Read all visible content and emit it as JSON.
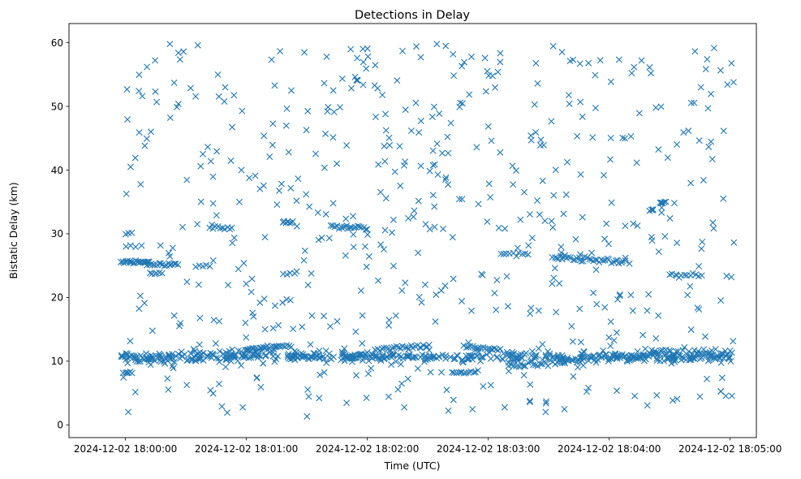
{
  "chart_data": {
    "type": "scatter",
    "title": "Detections in Delay",
    "xlabel": "Time (UTC)",
    "ylabel": "Bistatic Delay (km)",
    "marker": "x",
    "color": "#1f77b4",
    "grid": false,
    "xlim_seconds_after_18_00": [
      -28,
      313
    ],
    "ylim": [
      -2,
      63
    ],
    "x_ticks": [
      {
        "value": 0,
        "label": "2024-12-02 18:00:00"
      },
      {
        "value": 60,
        "label": "2024-12-02 18:01:00"
      },
      {
        "value": 120,
        "label": "2024-12-02 18:02:00"
      },
      {
        "value": 180,
        "label": "2024-12-02 18:03:00"
      },
      {
        "value": 240,
        "label": "2024-12-02 18:04:00"
      },
      {
        "value": 300,
        "label": "2024-12-02 18:05:00"
      }
    ],
    "y_ticks": [
      0,
      10,
      20,
      30,
      40,
      50,
      60
    ],
    "point_generation": {
      "description": "Approximately 1500 detections read from the scatter; dense tracks listed with their time span in seconds after 18:00:00 and delay in km, remaining points scattered uniformly over 0-60 km.",
      "seed": 20241202,
      "background_count": 560,
      "time_start_s": -2,
      "time_end_s": 302,
      "delay_min_km": 1,
      "delay_max_km": 60,
      "baseline_track": {
        "t0": -2,
        "t1": 302,
        "delay_km": 10.7,
        "jitter_km": 0.35,
        "count": 420
      },
      "tracks": [
        {
          "t0": -2,
          "t1": 12,
          "y0": 25.6,
          "y1": 25.6,
          "jitter": 0.15,
          "count": 22
        },
        {
          "t0": 10,
          "t1": 26,
          "y0": 25.2,
          "y1": 25.2,
          "jitter": 0.15,
          "count": 18
        },
        {
          "t0": -1,
          "t1": 3,
          "y0": 8.2,
          "y1": 8.2,
          "jitter": 0.1,
          "count": 6
        },
        {
          "t0": 0,
          "t1": 5,
          "y0": 28.0,
          "y1": 28.0,
          "jitter": 0.1,
          "count": 3
        },
        {
          "t0": 0,
          "t1": 3,
          "y0": 30.2,
          "y1": 30.2,
          "jitter": 0.2,
          "count": 3
        },
        {
          "t0": 4,
          "t1": 24,
          "y0": 10.7,
          "y1": 9.5,
          "jitter": 0.5,
          "count": 24
        },
        {
          "t0": 12,
          "t1": 18,
          "y0": 23.8,
          "y1": 23.8,
          "jitter": 0.1,
          "count": 6
        },
        {
          "t0": 35,
          "t1": 42,
          "y0": 24.9,
          "y1": 24.9,
          "jitter": 0.15,
          "count": 5
        },
        {
          "t0": 42,
          "t1": 53,
          "y0": 31.0,
          "y1": 31.0,
          "jitter": 0.2,
          "count": 10
        },
        {
          "t0": 20,
          "t1": 75,
          "y0": 10.8,
          "y1": 11.6,
          "jitter": 0.4,
          "count": 36
        },
        {
          "t0": 60,
          "t1": 82,
          "y0": 11.9,
          "y1": 12.5,
          "jitter": 0.15,
          "count": 24
        },
        {
          "t0": 78,
          "t1": 83,
          "y0": 31.8,
          "y1": 31.8,
          "jitter": 0.15,
          "count": 8
        },
        {
          "t0": 78,
          "t1": 84,
          "y0": 23.8,
          "y1": 23.8,
          "jitter": 0.1,
          "count": 4
        },
        {
          "t0": 78,
          "t1": 82,
          "y0": 19.6,
          "y1": 19.6,
          "jitter": 0.4,
          "count": 3
        },
        {
          "t0": 83,
          "t1": 98,
          "y0": 10.7,
          "y1": 10.7,
          "jitter": 0.25,
          "count": 12
        },
        {
          "t0": 102,
          "t1": 120,
          "y0": 31.2,
          "y1": 30.9,
          "jitter": 0.15,
          "count": 20
        },
        {
          "t0": 110,
          "t1": 125,
          "y0": 10.6,
          "y1": 10.8,
          "jitter": 0.25,
          "count": 18
        },
        {
          "t0": 124,
          "t1": 150,
          "y0": 11.8,
          "y1": 12.4,
          "jitter": 0.15,
          "count": 26
        },
        {
          "t0": 162,
          "t1": 175,
          "y0": 8.2,
          "y1": 8.4,
          "jitter": 0.1,
          "count": 12
        },
        {
          "t0": 168,
          "t1": 186,
          "y0": 12.3,
          "y1": 11.8,
          "jitter": 0.15,
          "count": 18
        },
        {
          "t0": 186,
          "t1": 200,
          "y0": 26.8,
          "y1": 26.8,
          "jitter": 0.1,
          "count": 10
        },
        {
          "t0": 190,
          "t1": 218,
          "y0": 9.2,
          "y1": 9.8,
          "jitter": 0.25,
          "count": 24
        },
        {
          "t0": 218,
          "t1": 232,
          "y0": 10.0,
          "y1": 10.5,
          "jitter": 0.25,
          "count": 14
        },
        {
          "t0": 212,
          "t1": 247,
          "y0": 26.3,
          "y1": 25.6,
          "jitter": 0.2,
          "count": 36
        },
        {
          "t0": 240,
          "t1": 262,
          "y0": 10.7,
          "y1": 10.8,
          "jitter": 0.3,
          "count": 18
        },
        {
          "t0": 260,
          "t1": 300,
          "y0": 11.5,
          "y1": 11.0,
          "jitter": 0.5,
          "count": 46
        },
        {
          "t0": 260,
          "t1": 262,
          "y0": 33.7,
          "y1": 33.7,
          "jitter": 0.1,
          "count": 4
        },
        {
          "t0": 265,
          "t1": 268,
          "y0": 34.8,
          "y1": 34.8,
          "jitter": 0.2,
          "count": 6
        },
        {
          "t0": 270,
          "t1": 286,
          "y0": 23.6,
          "y1": 23.4,
          "jitter": 0.15,
          "count": 12
        }
      ]
    }
  }
}
